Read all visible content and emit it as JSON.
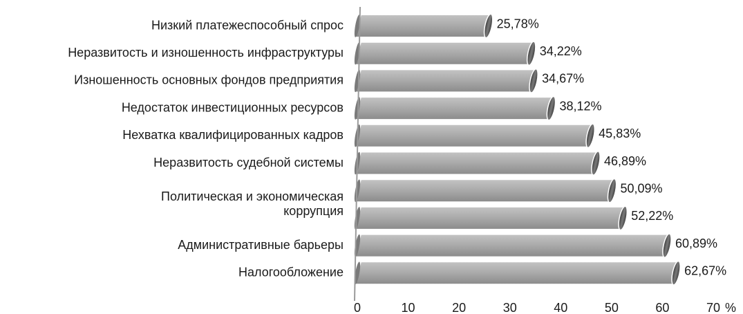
{
  "chart_data": {
    "type": "bar",
    "orientation": "horizontal",
    "style": "3d-cylinder",
    "categories": [
      "Низкий платежеспособный спрос",
      "Неразвитость и изношенность инфраструктуры",
      "Изношенность основных фондов предприятия",
      "Недостаток инвестиционных ресурсов",
      "Нехватка квалифицированных кадров",
      "Неразвитость судебной системы",
      "Политическая и экономическая коррупция",
      "",
      "Административные барьеры",
      "Налогообложение"
    ],
    "category_label_lines": [
      [
        "Низкий платежеспособный спрос"
      ],
      [
        "Неразвитость и изношенность инфраструктуры"
      ],
      [
        "Изношенность основных фондов предприятия"
      ],
      [
        "Недостаток инвестиционных ресурсов"
      ],
      [
        "Нехватка квалифицированных кадров"
      ],
      [
        "Неразвитость судебной системы"
      ],
      [
        "Политическая и экономическая",
        "коррупция"
      ],
      [],
      [
        "Административные барьеры"
      ],
      [
        "Налогообложение"
      ]
    ],
    "values": [
      25.78,
      34.22,
      34.67,
      38.12,
      45.83,
      46.89,
      50.09,
      52.22,
      60.89,
      62.67
    ],
    "value_labels": [
      "25,78%",
      "34,22%",
      "34,67%",
      "38,12%",
      "45,83%",
      "46,89%",
      "50,09%",
      "52,22%",
      "60,89%",
      "62,67%"
    ],
    "xlim": [
      0,
      70
    ],
    "xticks": [
      "0",
      "10",
      "20",
      "30",
      "40",
      "50",
      "60",
      "70"
    ],
    "x_unit": "%",
    "grid": false,
    "legend": "none",
    "colors": {
      "bar_fill": "#a9a9a9",
      "bar_outline": "#ffffff",
      "bar_end": "#4a4a4a",
      "text": "#1a1a1a"
    }
  }
}
